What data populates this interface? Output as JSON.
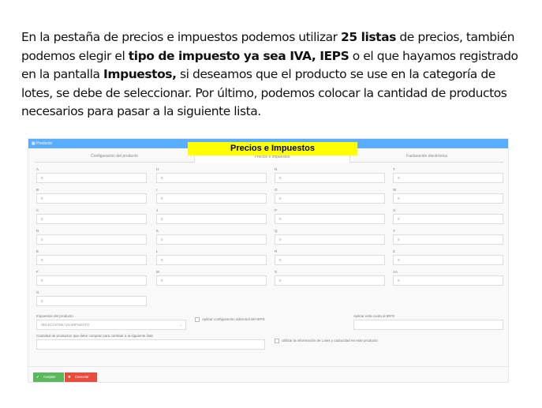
{
  "paragraph": {
    "t1": "En la pestaña de precios e impuestos podemos utilizar ",
    "b1": "25 listas",
    "t2": " de precios, también podemos elegir el ",
    "b2": "tipo de impuesto ya sea IVA, IEPS",
    "t3": "  o el que hayamos registrado en la pantalla ",
    "b3": "Impuestos,",
    "t4": " si deseamos que el producto se use en la categoría de lotes, se debe de seleccionar. Por último, podemos colocar la cantidad de productos necesarios para pasar a la siguiente lista."
  },
  "window": {
    "title": "Producto",
    "highlight": "Precios e Impuestos",
    "tabs": [
      "Configuración del producto",
      "Precios e impuestos",
      "Facturación electrónica"
    ]
  },
  "price_columns": [
    [
      {
        "label": "A",
        "value": "0"
      },
      {
        "label": "B",
        "value": "0"
      },
      {
        "label": "C",
        "value": "0"
      },
      {
        "label": "D",
        "value": "0"
      },
      {
        "label": "E",
        "value": "0"
      },
      {
        "label": "F",
        "value": "0"
      },
      {
        "label": "G",
        "value": "0"
      }
    ],
    [
      {
        "label": "H",
        "value": "0"
      },
      {
        "label": "I",
        "value": "0"
      },
      {
        "label": "J",
        "value": "0"
      },
      {
        "label": "K",
        "value": "0"
      },
      {
        "label": "L",
        "value": "0"
      },
      {
        "label": "M",
        "value": "0"
      }
    ],
    [
      {
        "label": "N",
        "value": "0"
      },
      {
        "label": "O",
        "value": "0"
      },
      {
        "label": "P",
        "value": "0"
      },
      {
        "label": "Q",
        "value": "0"
      },
      {
        "label": "R",
        "value": "0"
      },
      {
        "label": "S",
        "value": "0"
      }
    ],
    [
      {
        "label": "T",
        "value": "0"
      },
      {
        "label": "W",
        "value": "0"
      },
      {
        "label": "X",
        "value": "0"
      },
      {
        "label": "Y",
        "value": "0"
      },
      {
        "label": "Z",
        "value": "0"
      },
      {
        "label": "AA",
        "value": "0"
      }
    ]
  ],
  "taxes": {
    "label": "Impuestos del producto",
    "select_value": "SELECCIONE UN IMPUESTO",
    "ieps_checkbox": "Aplicar configuración adicional del IEPS",
    "ieps_quota_label": "Aplicar esta cuota al IEPS",
    "quantity_label": "Cantidad de productos que debe comprar para cambiar a la siguiente lista",
    "lots_checkbox": "Utilizar la información de Lotes y caducidad en este producto"
  },
  "buttons": {
    "accept": "Aceptar",
    "cancel": "Cancelar"
  },
  "colors": {
    "header": "#5aaefc",
    "highlight": "#ffff00",
    "accept": "#5cb85c",
    "cancel": "#e74c3c"
  }
}
